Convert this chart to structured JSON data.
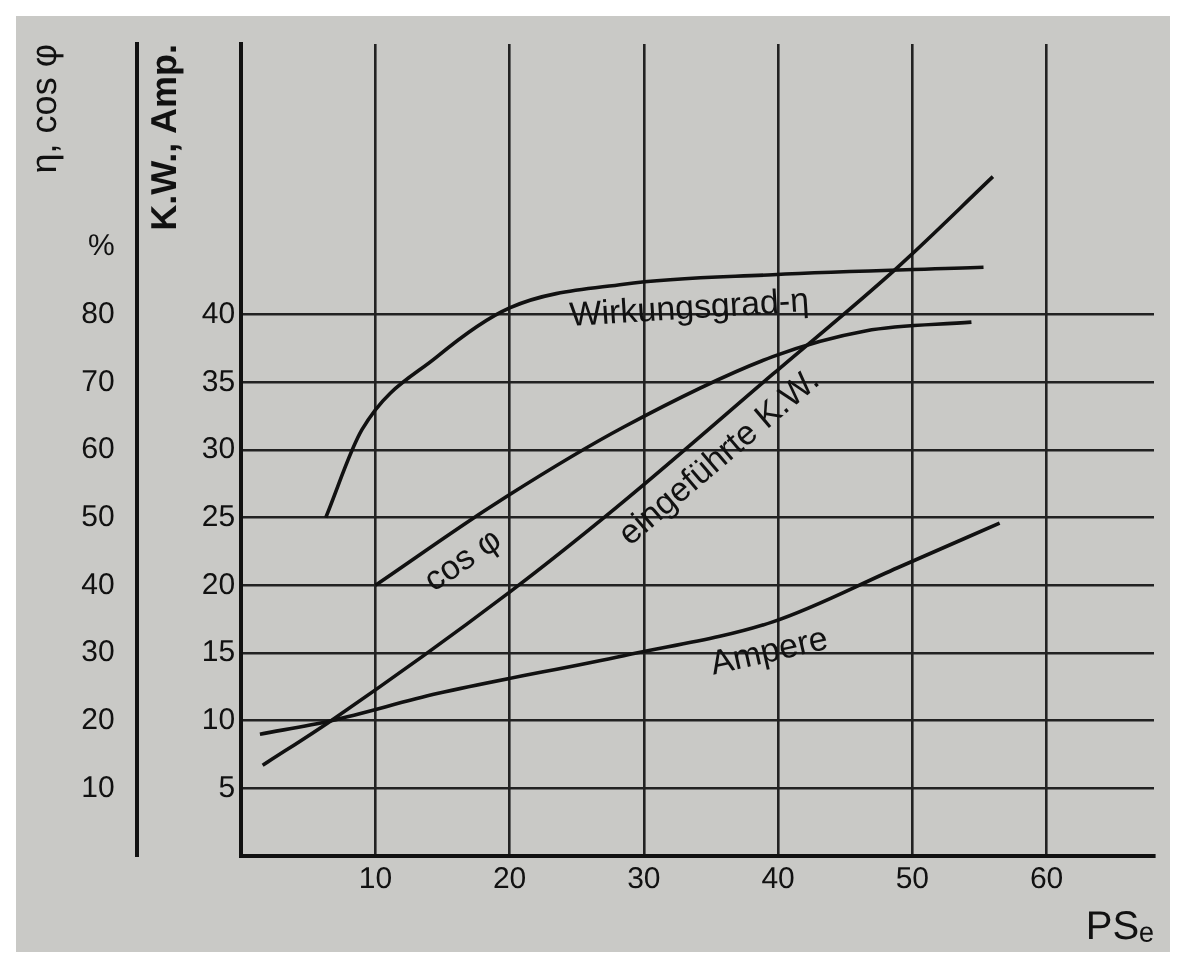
{
  "chart_data": {
    "type": "line",
    "xlabel": "PSₑ",
    "ylabel": "K.W., Amp.",
    "y2label": "η, cos φ",
    "xlim": [
      0,
      68
    ],
    "xticks": [
      10,
      20,
      30,
      40,
      50,
      60
    ],
    "ylim": [
      0,
      60
    ],
    "yticks": [
      5,
      10,
      15,
      20,
      25,
      30,
      35,
      40
    ],
    "y2lim": [
      0,
      120
    ],
    "y2ticks": [
      10,
      20,
      30,
      40,
      50,
      60,
      70,
      80,
      {
        "value": 90,
        "label": "%"
      }
    ],
    "grid": true,
    "legend": false,
    "marker": "none",
    "line_style": "solid",
    "series": [
      {
        "name": "Wirkungsgrad-η",
        "color": "#111111",
        "axis": "y2",
        "x": [
          6.3,
          9,
          14.6,
          20,
          28.5,
          39.6,
          55.3
        ],
        "values": [
          50,
          63,
          73.8,
          81,
          84.5,
          85.9,
          87
        ]
      },
      {
        "name": "cos φ",
        "color": "#111111",
        "axis": "y2",
        "x": [
          10,
          19.2,
          28.5,
          39.6,
          46.5,
          54.4
        ],
        "values": [
          40,
          52.4,
          63.4,
          73.8,
          77.6,
          78.9
        ]
      },
      {
        "name": "eingeführte K.W.",
        "color": "#111111",
        "x": [
          1.6,
          6.7,
          20,
          28.5,
          39.6,
          48.9,
          56
        ],
        "values": [
          6.7,
          10,
          19.5,
          26.2,
          35.6,
          43.5,
          50.2
        ]
      },
      {
        "name": "Ampere",
        "color": "#111111",
        "x": [
          1.4,
          6.7,
          14.6,
          28.5,
          39.6,
          48.9,
          56.5
        ],
        "values": [
          9,
          10,
          12,
          14.8,
          17.3,
          21.3,
          24.6
        ]
      }
    ]
  }
}
